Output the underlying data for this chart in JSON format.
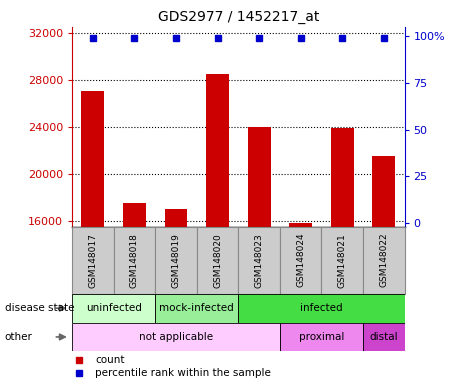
{
  "title": "GDS2977 / 1452217_at",
  "samples": [
    "GSM148017",
    "GSM148018",
    "GSM148019",
    "GSM148020",
    "GSM148023",
    "GSM148024",
    "GSM148021",
    "GSM148022"
  ],
  "bar_values": [
    27000,
    17500,
    17000,
    28500,
    24000,
    15800,
    23900,
    21500
  ],
  "percentile_values": [
    99,
    99,
    99,
    99,
    99,
    99,
    99,
    99
  ],
  "ylim_left": [
    15500,
    32500
  ],
  "ylim_right": [
    -2,
    105
  ],
  "yticks_left": [
    16000,
    20000,
    24000,
    28000,
    32000
  ],
  "yticks_right": [
    0,
    25,
    50,
    75,
    100
  ],
  "bar_color": "#cc0000",
  "dot_color": "#0000cc",
  "disease_groups": [
    [
      0,
      2,
      "#ccffcc",
      "uninfected"
    ],
    [
      2,
      4,
      "#99ee99",
      "mock-infected"
    ],
    [
      4,
      8,
      "#44dd44",
      "infected"
    ]
  ],
  "other_groups": [
    [
      0,
      5,
      "#ffccff",
      "not applicable"
    ],
    [
      5,
      7,
      "#ee88ee",
      "proximal"
    ],
    [
      7,
      8,
      "#cc44cc",
      "distal"
    ]
  ],
  "legend_items": [
    {
      "label": "count",
      "color": "#cc0000"
    },
    {
      "label": "percentile rank within the sample",
      "color": "#0000cc"
    }
  ],
  "sample_box_color": "#cccccc",
  "sample_box_edge": "#888888",
  "fig_bg": "#ffffff"
}
